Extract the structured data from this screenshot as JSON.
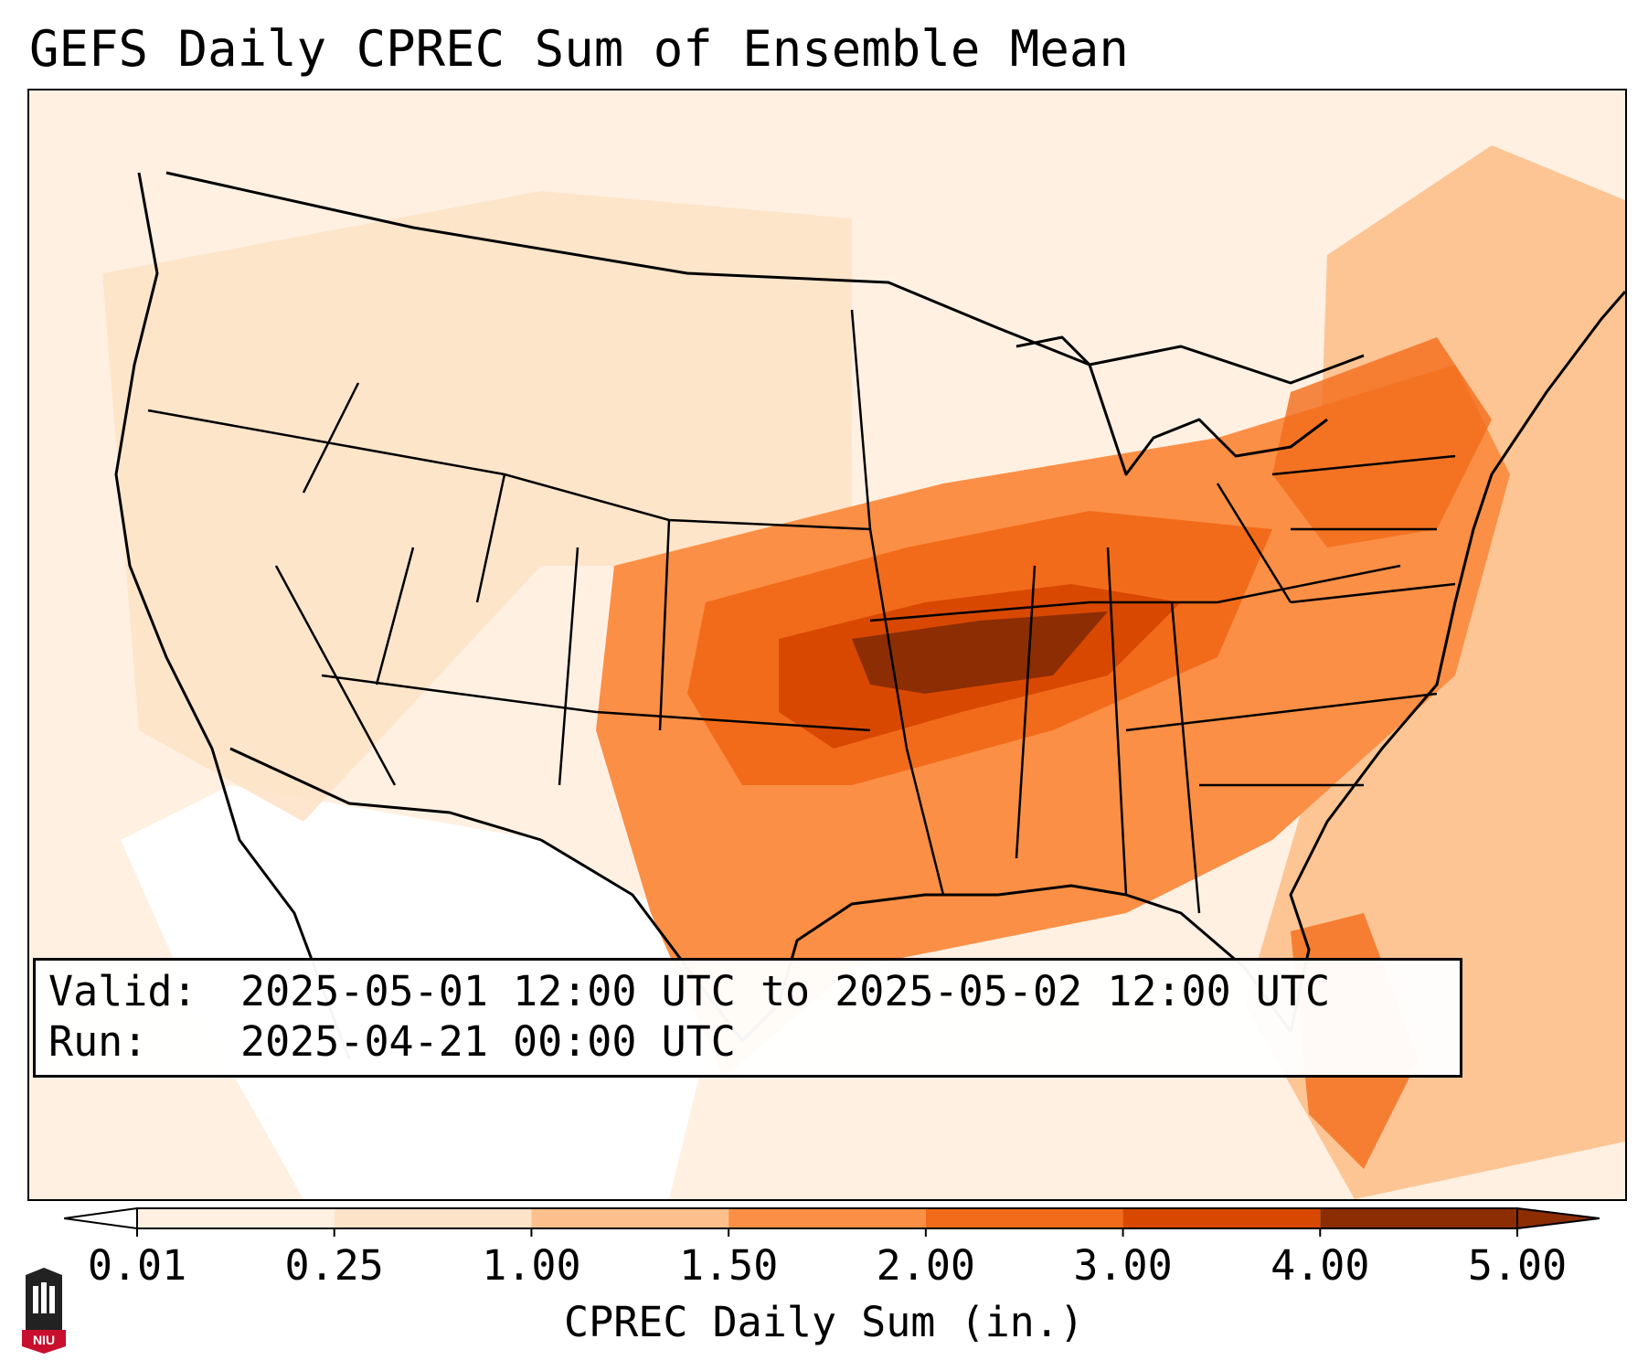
{
  "title": "GEFS Daily CPREC Sum of Ensemble Mean",
  "info": {
    "valid_label": "Valid:",
    "valid_value": "2025-05-01 12:00 UTC to 2025-05-02 12:00 UTC",
    "run_label": "Run:",
    "run_value": "2025-04-21 00:00 UTC"
  },
  "colorbar": {
    "title": "CPREC Daily Sum (in.)",
    "ticks": [
      "0.01",
      "0.25",
      "1.00",
      "1.50",
      "2.00",
      "3.00",
      "4.00",
      "5.00"
    ],
    "colors": [
      "#ffffff",
      "#fff0e2",
      "#fde3c8",
      "#fdc08c",
      "#fb8f45",
      "#f26b1a",
      "#d94801",
      "#8c2d04"
    ]
  },
  "logo": {
    "text": "NIU"
  },
  "colors": {
    "background": "#ffffff",
    "ocean": "#fff0e2",
    "light": "#fde3c8",
    "medium": "#fdc08c",
    "orange": "#fb8f45",
    "darkorange": "#f26b1a",
    "red": "#d94801",
    "darkest": "#8c2d04"
  }
}
